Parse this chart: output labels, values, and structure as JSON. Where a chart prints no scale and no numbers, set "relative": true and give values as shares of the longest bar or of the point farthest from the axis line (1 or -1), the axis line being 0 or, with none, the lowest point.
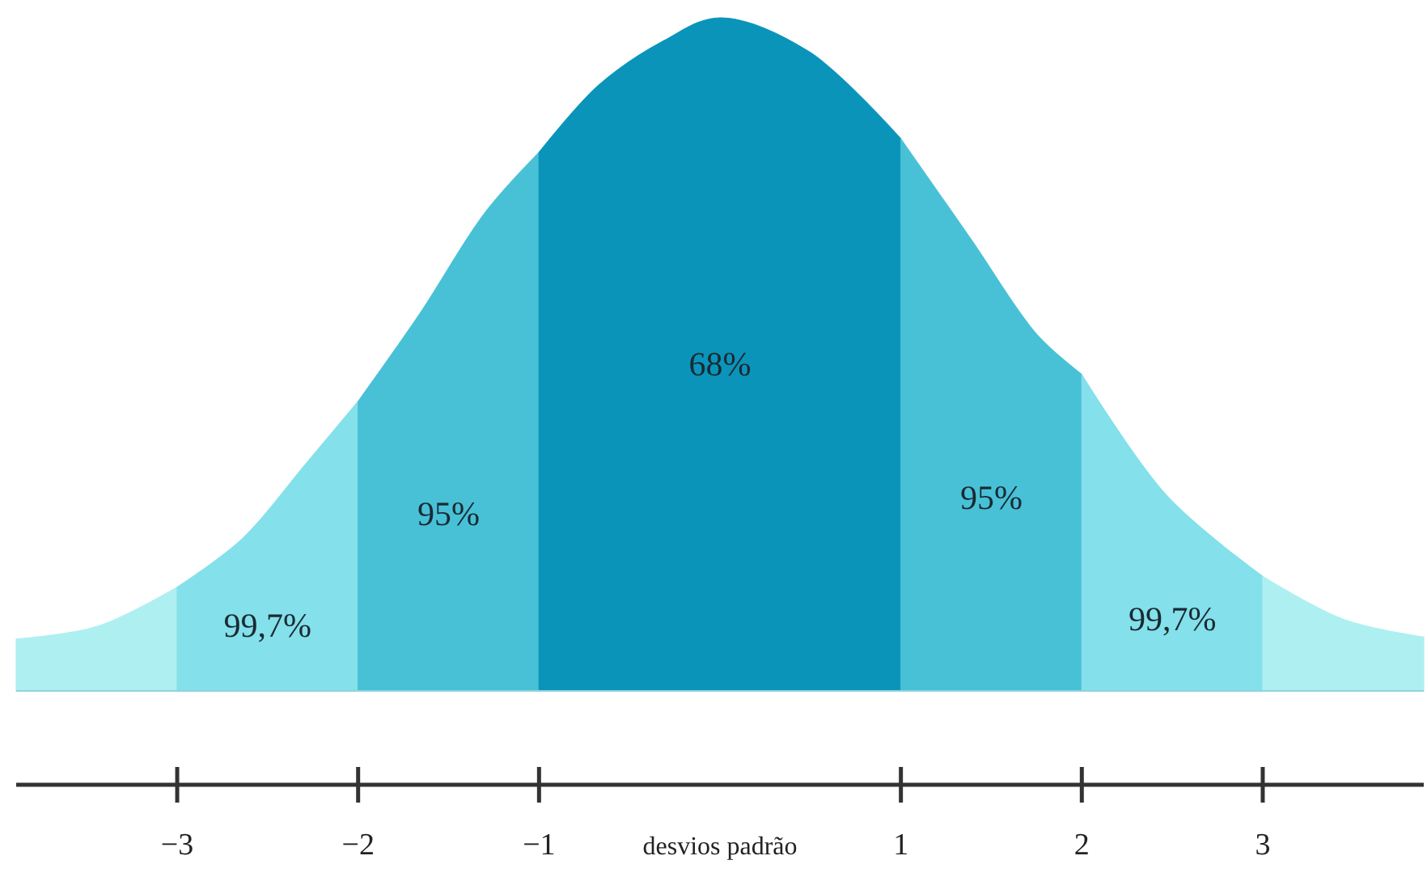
{
  "chart_data": {
    "type": "area",
    "relative": true,
    "xlabel": "desvios padrão",
    "series": [
      {
        "color": "#aeeff2",
        "x": [
          -3.89,
          -3.44,
          -3
        ],
        "values": [
          0.077,
          0.096,
          0.154
        ]
      },
      {
        "color": "#84e0ea",
        "x": [
          -3,
          -2.64,
          -2.29,
          -2
        ],
        "values": [
          0.154,
          0.226,
          0.337,
          0.43
        ]
      },
      {
        "color": "#48c1d7",
        "x": [
          -2,
          -1.66,
          -1.3,
          -1
        ],
        "values": [
          0.43,
          0.56,
          0.71,
          0.8
        ]
      },
      {
        "color": "#0b94ba",
        "x": [
          -1,
          -0.67,
          -0.31,
          0,
          0.49,
          1
        ],
        "values": [
          0.8,
          0.9,
          0.966,
          1,
          0.95,
          0.82
        ]
      },
      {
        "color": "#48c1d7",
        "x": [
          1,
          1.39,
          1.75,
          2
        ],
        "values": [
          0.82,
          0.67,
          0.53,
          0.47
        ]
      },
      {
        "color": "#84e0ea",
        "x": [
          2,
          2.47,
          3
        ],
        "values": [
          0.47,
          0.29,
          0.17
        ]
      },
      {
        "color": "#aeeff2",
        "x": [
          3,
          3.45,
          3.89
        ],
        "values": [
          0.17,
          0.106,
          0.08
        ]
      }
    ],
    "xlim": [
      -3.89,
      3.89
    ],
    "xticks": [
      -3,
      -2,
      -1,
      1,
      2,
      3
    ],
    "annotations": [
      "99,7%",
      "95%",
      "68%",
      "95%",
      "99,7%"
    ]
  }
}
